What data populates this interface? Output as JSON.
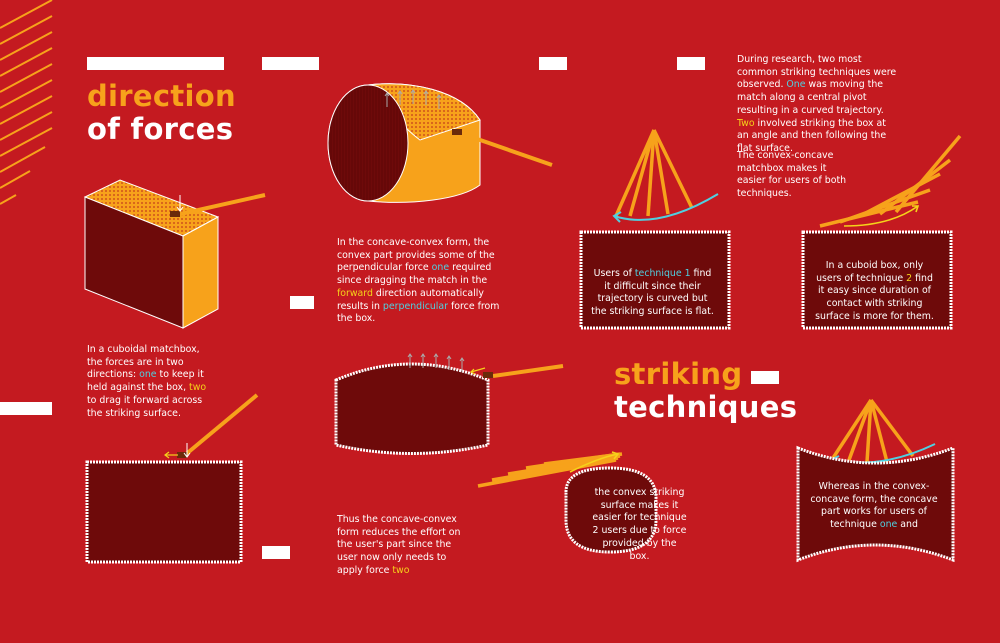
{
  "headings": {
    "direction_line1": "direction",
    "direction_line2": "of forces",
    "striking_line1": "striking",
    "striking_line2": "techniques"
  },
  "paragraphs": {
    "research": [
      {
        "t": "During research, two most common striking techniques were observed. ",
        "c": "w"
      },
      {
        "t": "One",
        "c": "cyan"
      },
      {
        "t": " was moving the match along a central pivot resulting in a curved trajectory. ",
        "c": "w"
      },
      {
        "t": "Two",
        "c": "yellow"
      },
      {
        "t": " involved striking the box at an angle and then following the flat surface.",
        "c": "w"
      }
    ],
    "convex_concave_easier": "The convex-concave matchbox makes it easier for users of both techniques.",
    "concave_convex_form": [
      {
        "t": "In the concave-convex form, the convex part provides some of the perpendicular force ",
        "c": "w"
      },
      {
        "t": "one",
        "c": "cyan"
      },
      {
        "t": " required since dragging the match in the ",
        "c": "w"
      },
      {
        "t": "forward",
        "c": "yellow"
      },
      {
        "t": " direction automatically results in ",
        "c": "w"
      },
      {
        "t": "perpendicular",
        "c": "cyan"
      },
      {
        "t": " force from the box.",
        "c": "w"
      }
    ],
    "cuboidal_matchbox": [
      {
        "t": "In a cuboidal matchbox, the forces are in two directions: ",
        "c": "w"
      },
      {
        "t": "one",
        "c": "cyan"
      },
      {
        "t": " to keep it held against the box, ",
        "c": "w"
      },
      {
        "t": "two",
        "c": "yellow"
      },
      {
        "t": " to drag it forward across the striking surface.",
        "c": "w"
      }
    ],
    "thus_form": [
      {
        "t": "Thus the concave-convex form reduces the effort on the user's part since the user now only needs to apply force ",
        "c": "w"
      },
      {
        "t": "two",
        "c": "yellow"
      }
    ]
  },
  "boxes": {
    "technique1_box": [
      {
        "t": "Users of ",
        "c": "w"
      },
      {
        "t": "technique 1",
        "c": "cyan"
      },
      {
        "t": " find it difficult since their trajectory is curved but the striking surface is flat.",
        "c": "w"
      }
    ],
    "technique2_box": [
      {
        "t": "In a cuboid box, only users of technique ",
        "c": "w"
      },
      {
        "t": "2",
        "c": "yellow"
      },
      {
        "t": " find it easy since duration of contact with striking surface is more for them.",
        "c": "w"
      }
    ],
    "convex_box": "the convex striking surface makes it easier for technique 2 users due to force provided by the box.",
    "concave_box": [
      {
        "t": "Whereas in the convex-concave form, the concave part works for users of technique ",
        "c": "w"
      },
      {
        "t": "one",
        "c": "cyan"
      },
      {
        "t": " and",
        "c": "w"
      }
    ]
  },
  "colors": {
    "background": "#c41a20",
    "orange": "#f7a21b",
    "dark_red": "#6e0a0a",
    "cyan": "#4fd0e0",
    "yellow": "#f5d21a"
  }
}
